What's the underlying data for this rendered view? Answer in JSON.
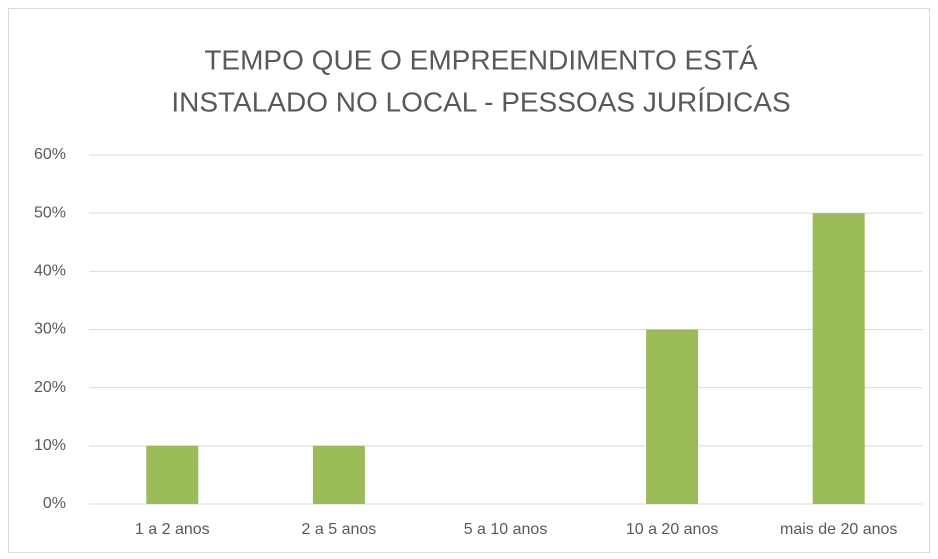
{
  "chart_data": {
    "type": "bar",
    "title": [
      "TEMPO QUE O EMPREENDIMENTO ESTÁ",
      "INSTALADO NO LOCAL - PESSOAS JURÍDICAS"
    ],
    "categories": [
      "1 a 2 anos",
      "2 a 5 anos",
      "5 a 10 anos",
      "10 a 20 anos",
      "mais de 20 anos"
    ],
    "values": [
      10,
      10,
      0,
      30,
      50
    ],
    "color": "#9bbb59",
    "ylim": [
      0,
      60
    ],
    "yticks": [
      {
        "value": 0,
        "label": "0%"
      },
      {
        "value": 10,
        "label": "10%"
      },
      {
        "value": 20,
        "label": "20%"
      },
      {
        "value": 30,
        "label": "30%"
      },
      {
        "value": 40,
        "label": "40%"
      },
      {
        "value": 50,
        "label": "50%"
      },
      {
        "value": 60,
        "label": "60%"
      }
    ],
    "grid": true
  }
}
